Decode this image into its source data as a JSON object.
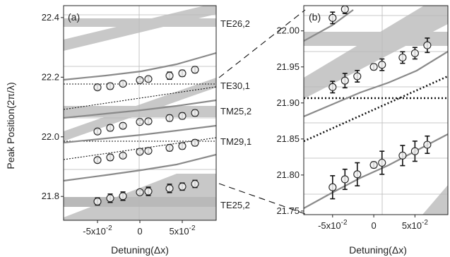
{
  "figure": {
    "ylabel": "Peak Position(2π/λ)",
    "xlabel_a": "Detuning(Δx)",
    "xlabel_b": "Detuning(Δx)",
    "mode_labels": [
      "TE26,2",
      "TE30,1",
      "TM25,2",
      "TM29,1",
      "TE25,2"
    ]
  },
  "chart_data": [
    {
      "panel": "(a)",
      "type": "scatter",
      "xlabel": "Detuning(Δx)",
      "ylabel": "Peak Position(2π/λ)",
      "xlim": [
        -0.09,
        0.09
      ],
      "ylim": [
        21.72,
        22.44
      ],
      "xticks": [
        -0.05,
        0,
        0.05
      ],
      "xtick_labels": [
        "-5x10-2",
        "0",
        "5x10-2"
      ],
      "yticks": [
        21.8,
        22.0,
        22.2,
        22.4
      ],
      "ytick_labels": [
        "21.8",
        "22.0",
        "22.2",
        "22.4"
      ],
      "grid": true,
      "series": [
        {
          "x": [
            -0.05,
            -0.035,
            -0.02,
            0,
            0.01,
            0.035,
            0.05,
            0.065
          ],
          "y": [
            22.166,
            22.17,
            22.178,
            22.19,
            22.194,
            22.205,
            22.213,
            22.225
          ],
          "err": [
            0.008,
            0.01,
            0.008,
            0.006,
            0.008,
            0.012,
            0.01,
            0.01
          ]
        },
        {
          "x": [
            -0.05,
            -0.035,
            -0.02,
            0,
            0.01,
            0.035,
            0.05,
            0.065
          ],
          "y": [
            22.018,
            22.03,
            22.037,
            22.05,
            22.052,
            22.063,
            22.07,
            22.08
          ],
          "err": [
            0.008,
            0.01,
            0.008,
            0.006,
            0.008,
            0.01,
            0.01,
            0.01
          ]
        },
        {
          "x": [
            -0.05,
            -0.035,
            -0.02,
            0,
            0.01,
            0.035,
            0.05,
            0.065
          ],
          "y": [
            21.922,
            21.931,
            21.937,
            21.95,
            21.953,
            21.963,
            21.969,
            21.98
          ],
          "err": [
            0.008,
            0.01,
            0.008,
            0.006,
            0.008,
            0.01,
            0.01,
            0.01
          ]
        },
        {
          "x": [
            -0.05,
            -0.035,
            -0.02,
            0,
            0.01,
            0.035,
            0.05,
            0.065
          ],
          "y": [
            21.783,
            21.794,
            21.801,
            21.814,
            21.817,
            21.827,
            21.833,
            21.842
          ],
          "err": [
            0.012,
            0.014,
            0.014,
            0.006,
            0.014,
            0.014,
            0.012,
            0.012
          ]
        }
      ]
    },
    {
      "panel": "(b)",
      "type": "scatter",
      "xlabel": "Detuning(Δx)",
      "ylabel": "Peak Position(2π/λ)",
      "xlim": [
        -0.085,
        0.09
      ],
      "ylim": [
        21.745,
        22.035
      ],
      "xticks": [
        -0.05,
        0,
        0.05
      ],
      "xtick_labels": [
        "-5x10-2",
        "0",
        "5x10-2"
      ],
      "yticks": [
        21.75,
        21.8,
        21.85,
        21.9,
        21.95,
        22.0
      ],
      "ytick_labels": [
        "21.75",
        "21.80",
        "21.85",
        "21.90",
        "21.95",
        "22.00"
      ],
      "grid": true,
      "series": [
        {
          "x": [
            -0.05,
            -0.035
          ],
          "y": [
            22.018,
            22.03
          ],
          "err": [
            0.008,
            0.006
          ]
        },
        {
          "x": [
            -0.05,
            -0.035,
            -0.02,
            0,
            0.01,
            0.035,
            0.05,
            0.065
          ],
          "y": [
            21.922,
            21.931,
            21.937,
            21.95,
            21.953,
            21.963,
            21.969,
            21.98
          ],
          "err": [
            0.008,
            0.01,
            0.008,
            0.004,
            0.008,
            0.008,
            0.008,
            0.01
          ]
        },
        {
          "x": [
            -0.05,
            -0.035,
            -0.02,
            0,
            0.01,
            0.035,
            0.05,
            0.065
          ],
          "y": [
            21.783,
            21.794,
            21.801,
            21.814,
            21.817,
            21.827,
            21.833,
            21.842
          ],
          "err": [
            0.016,
            0.014,
            0.016,
            0.004,
            0.016,
            0.014,
            0.014,
            0.012
          ]
        }
      ]
    }
  ]
}
